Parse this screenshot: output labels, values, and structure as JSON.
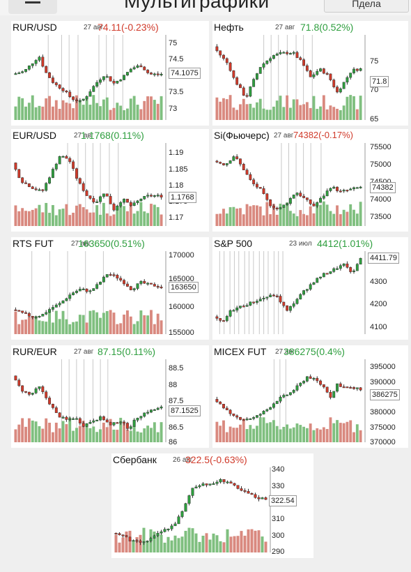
{
  "header": {
    "title": "Мультиграфики",
    "right_button": "Пдела"
  },
  "colors": {
    "up": "#2e9e3e",
    "down": "#d03a2a",
    "vol_up": "#7fbf7f",
    "vol_down": "#d9897f",
    "grid": "#c8c8c8"
  },
  "icons": {
    "menu": "hamburger-icon"
  },
  "panels": [
    {
      "name": "RUR/USD",
      "date": "27 авг",
      "price": "74.11(-0.23%)",
      "direction": "down",
      "ticks": [
        "75",
        "74.5",
        "74",
        "73.5",
        "73"
      ],
      "current": "74.1075"
    },
    {
      "name": "Нефть",
      "date": "27 авг",
      "price": "71.8(0.52%)",
      "direction": "up",
      "ticks": [
        "75",
        "70",
        "65"
      ],
      "current": "71.8"
    },
    {
      "name": "EUR/USD",
      "date": "27 авг",
      "price": "1.1768(0.11%)",
      "direction": "up",
      "ticks": [
        "1.19",
        "1.185",
        "1.18",
        "1.175",
        "1.17"
      ],
      "current": "1.1768"
    },
    {
      "name": "Si(Фьючерс)",
      "date": "27 авг",
      "price": "74382(-0.17%)",
      "direction": "down",
      "ticks": [
        "75500",
        "75000",
        "74500",
        "74000",
        "73500"
      ],
      "current": "74382"
    },
    {
      "name": "RTS FUT",
      "date": "27 авг",
      "price": "163650(0.51%)",
      "direction": "up",
      "ticks": [
        "170000",
        "165000",
        "160000",
        "155000"
      ],
      "current": "163650"
    },
    {
      "name": "S&P 500",
      "date": "23 июл",
      "price": "4412(1.01%)",
      "direction": "up",
      "ticks": [
        "4300",
        "4200",
        "4100"
      ],
      "current": "4411.79"
    },
    {
      "name": "RUR/EUR",
      "date": "27 авг",
      "price": "87.15(0.11%)",
      "direction": "up",
      "ticks": [
        "88.5",
        "88",
        "87.5",
        "87",
        "86.5",
        "86"
      ],
      "current": "87.1525"
    },
    {
      "name": "MICEX FUT",
      "date": "27 авг",
      "price": "386275(0.4%)",
      "direction": "up",
      "ticks": [
        "395000",
        "390000",
        "385000",
        "380000",
        "375000",
        "370000"
      ],
      "current": "386275"
    },
    {
      "name": "Сбербанк",
      "date": "26 авг",
      "price": "322.5(-0.63%)",
      "direction": "down",
      "ticks": [
        "340",
        "330",
        "320",
        "310",
        "300",
        "290"
      ],
      "current": "322.54"
    }
  ],
  "series": [
    {
      "range": [
        72.6,
        75.4
      ],
      "grid": [
        0.23,
        0.32,
        0.37,
        0.43,
        0.57,
        0.62,
        0.67,
        0.73
      ],
      "bars": 50,
      "path": [
        [
          0,
          74.1
        ],
        [
          0.08,
          74.2
        ],
        [
          0.14,
          74.5
        ],
        [
          0.18,
          74.7
        ],
        [
          0.22,
          74.2
        ],
        [
          0.28,
          73.8
        ],
        [
          0.34,
          73.6
        ],
        [
          0.4,
          73.3
        ],
        [
          0.46,
          73.2
        ],
        [
          0.5,
          73.4
        ],
        [
          0.56,
          73.8
        ],
        [
          0.62,
          74.1
        ],
        [
          0.68,
          73.8
        ],
        [
          0.74,
          74.0
        ],
        [
          0.8,
          74.3
        ],
        [
          0.86,
          74.4
        ],
        [
          0.92,
          74.1
        ],
        [
          1,
          74.11
        ]
      ]
    },
    {
      "range": [
        64,
        77
      ],
      "grid": [
        0.33,
        0.38,
        0.43,
        0.49,
        0.55,
        0.6,
        0.66
      ],
      "bars": 50,
      "path": [
        [
          0,
          75.2
        ],
        [
          0.05,
          73.8
        ],
        [
          0.1,
          72.5
        ],
        [
          0.14,
          70.2
        ],
        [
          0.18,
          68.8
        ],
        [
          0.22,
          67.3
        ],
        [
          0.26,
          69.5
        ],
        [
          0.32,
          72.2
        ],
        [
          0.4,
          73.8
        ],
        [
          0.46,
          74.2
        ],
        [
          0.54,
          74.3
        ],
        [
          0.6,
          72.8
        ],
        [
          0.66,
          70.5
        ],
        [
          0.72,
          71.8
        ],
        [
          0.78,
          70.8
        ],
        [
          0.84,
          68.2
        ],
        [
          0.88,
          69.5
        ],
        [
          0.94,
          71.6
        ],
        [
          1,
          71.8
        ]
      ]
    },
    {
      "range": [
        1.1685,
        1.1915
      ],
      "grid": [
        0.36,
        0.43,
        0.48,
        0.53,
        0.58,
        0.64,
        0.7
      ],
      "bars": 50,
      "path": [
        [
          0,
          1.186
        ],
        [
          0.06,
          1.181
        ],
        [
          0.14,
          1.179
        ],
        [
          0.2,
          1.178
        ],
        [
          0.26,
          1.183
        ],
        [
          0.32,
          1.188
        ],
        [
          0.38,
          1.187
        ],
        [
          0.44,
          1.181
        ],
        [
          0.5,
          1.177
        ],
        [
          0.56,
          1.175
        ],
        [
          0.62,
          1.178
        ],
        [
          0.68,
          1.173
        ],
        [
          0.74,
          1.176
        ],
        [
          0.8,
          1.174
        ],
        [
          0.86,
          1.176
        ],
        [
          0.92,
          1.177
        ],
        [
          1,
          1.1768
        ]
      ]
    },
    {
      "range": [
        73300,
        75600
      ],
      "grid": [
        0.45,
        0.5,
        0.55,
        0.6,
        0.65,
        0.72
      ],
      "bars": 50,
      "path": [
        [
          0,
          75100
        ],
        [
          0.08,
          75000
        ],
        [
          0.14,
          75250
        ],
        [
          0.2,
          74900
        ],
        [
          0.26,
          74500
        ],
        [
          0.32,
          74300
        ],
        [
          0.38,
          73900
        ],
        [
          0.44,
          73750
        ],
        [
          0.5,
          73950
        ],
        [
          0.56,
          74250
        ],
        [
          0.62,
          74050
        ],
        [
          0.68,
          73850
        ],
        [
          0.74,
          74100
        ],
        [
          0.8,
          74400
        ],
        [
          0.86,
          74250
        ],
        [
          0.92,
          74300
        ],
        [
          1,
          74382
        ]
      ]
    },
    {
      "range": [
        154500,
        170500
      ],
      "grid": [
        0.12,
        0.24,
        0.36,
        0.48,
        0.6
      ],
      "bars": 50,
      "path": [
        [
          0,
          159200
        ],
        [
          0.08,
          158400
        ],
        [
          0.14,
          157800
        ],
        [
          0.2,
          158200
        ],
        [
          0.26,
          159500
        ],
        [
          0.32,
          160400
        ],
        [
          0.4,
          162400
        ],
        [
          0.46,
          163200
        ],
        [
          0.52,
          162700
        ],
        [
          0.58,
          164200
        ],
        [
          0.64,
          166200
        ],
        [
          0.7,
          165500
        ],
        [
          0.76,
          164200
        ],
        [
          0.8,
          163100
        ],
        [
          0.86,
          164500
        ],
        [
          0.92,
          164000
        ],
        [
          1,
          163650
        ]
      ]
    },
    {
      "range": [
        4060,
        4440
      ],
      "grid": [
        0.03,
        0.06,
        0.1,
        0.13,
        0.16,
        0.2,
        0.23,
        0.26,
        0.3,
        0.33,
        0.36,
        0.4,
        0.43,
        0.46
      ],
      "bars": 0,
      "path": [
        [
          0,
          4140
        ],
        [
          0.06,
          4110
        ],
        [
          0.12,
          4170
        ],
        [
          0.2,
          4190
        ],
        [
          0.28,
          4210
        ],
        [
          0.36,
          4230
        ],
        [
          0.42,
          4240
        ],
        [
          0.46,
          4205
        ],
        [
          0.5,
          4165
        ],
        [
          0.56,
          4215
        ],
        [
          0.62,
          4260
        ],
        [
          0.68,
          4300
        ],
        [
          0.74,
          4330
        ],
        [
          0.8,
          4350
        ],
        [
          0.86,
          4370
        ],
        [
          0.9,
          4380
        ],
        [
          0.94,
          4330
        ],
        [
          0.97,
          4370
        ],
        [
          1,
          4412
        ]
      ]
    },
    {
      "range": [
        85.9,
        88.9
      ],
      "grid": [
        0.32,
        0.37,
        0.42,
        0.47,
        0.53,
        0.58,
        0.63
      ],
      "bars": 50,
      "path": [
        [
          0,
          88.3
        ],
        [
          0.06,
          87.8
        ],
        [
          0.12,
          87.6
        ],
        [
          0.18,
          87.9
        ],
        [
          0.24,
          87.4
        ],
        [
          0.3,
          86.9
        ],
        [
          0.36,
          86.7
        ],
        [
          0.42,
          86.8
        ],
        [
          0.48,
          86.5
        ],
        [
          0.54,
          86.7
        ],
        [
          0.6,
          86.8
        ],
        [
          0.66,
          86.5
        ],
        [
          0.72,
          86.7
        ],
        [
          0.78,
          86.4
        ],
        [
          0.84,
          86.8
        ],
        [
          0.9,
          87.0
        ],
        [
          1,
          87.15
        ]
      ]
    },
    {
      "range": [
        369000,
        396000
      ],
      "grid": [
        0.4,
        0.44,
        0.48
      ],
      "bars": 50,
      "path": [
        [
          0,
          383000
        ],
        [
          0.06,
          381000
        ],
        [
          0.12,
          377500
        ],
        [
          0.2,
          376500
        ],
        [
          0.28,
          377000
        ],
        [
          0.36,
          379500
        ],
        [
          0.44,
          383000
        ],
        [
          0.52,
          385000
        ],
        [
          0.58,
          387500
        ],
        [
          0.64,
          390500
        ],
        [
          0.7,
          389000
        ],
        [
          0.76,
          386500
        ],
        [
          0.8,
          383500
        ],
        [
          0.84,
          388000
        ],
        [
          0.88,
          387000
        ],
        [
          0.94,
          386500
        ],
        [
          1,
          386275
        ]
      ]
    },
    {
      "range": [
        289,
        342
      ],
      "grid": [],
      "bars": 50,
      "path": [
        [
          0,
          301
        ],
        [
          0.06,
          300
        ],
        [
          0.12,
          296
        ],
        [
          0.2,
          295
        ],
        [
          0.26,
          298
        ],
        [
          0.32,
          302
        ],
        [
          0.4,
          306
        ],
        [
          0.46,
          315
        ],
        [
          0.52,
          329
        ],
        [
          0.58,
          332
        ],
        [
          0.64,
          331
        ],
        [
          0.7,
          334
        ],
        [
          0.76,
          333
        ],
        [
          0.82,
          328
        ],
        [
          0.88,
          326
        ],
        [
          0.94,
          323
        ],
        [
          1,
          322.5
        ]
      ]
    }
  ]
}
